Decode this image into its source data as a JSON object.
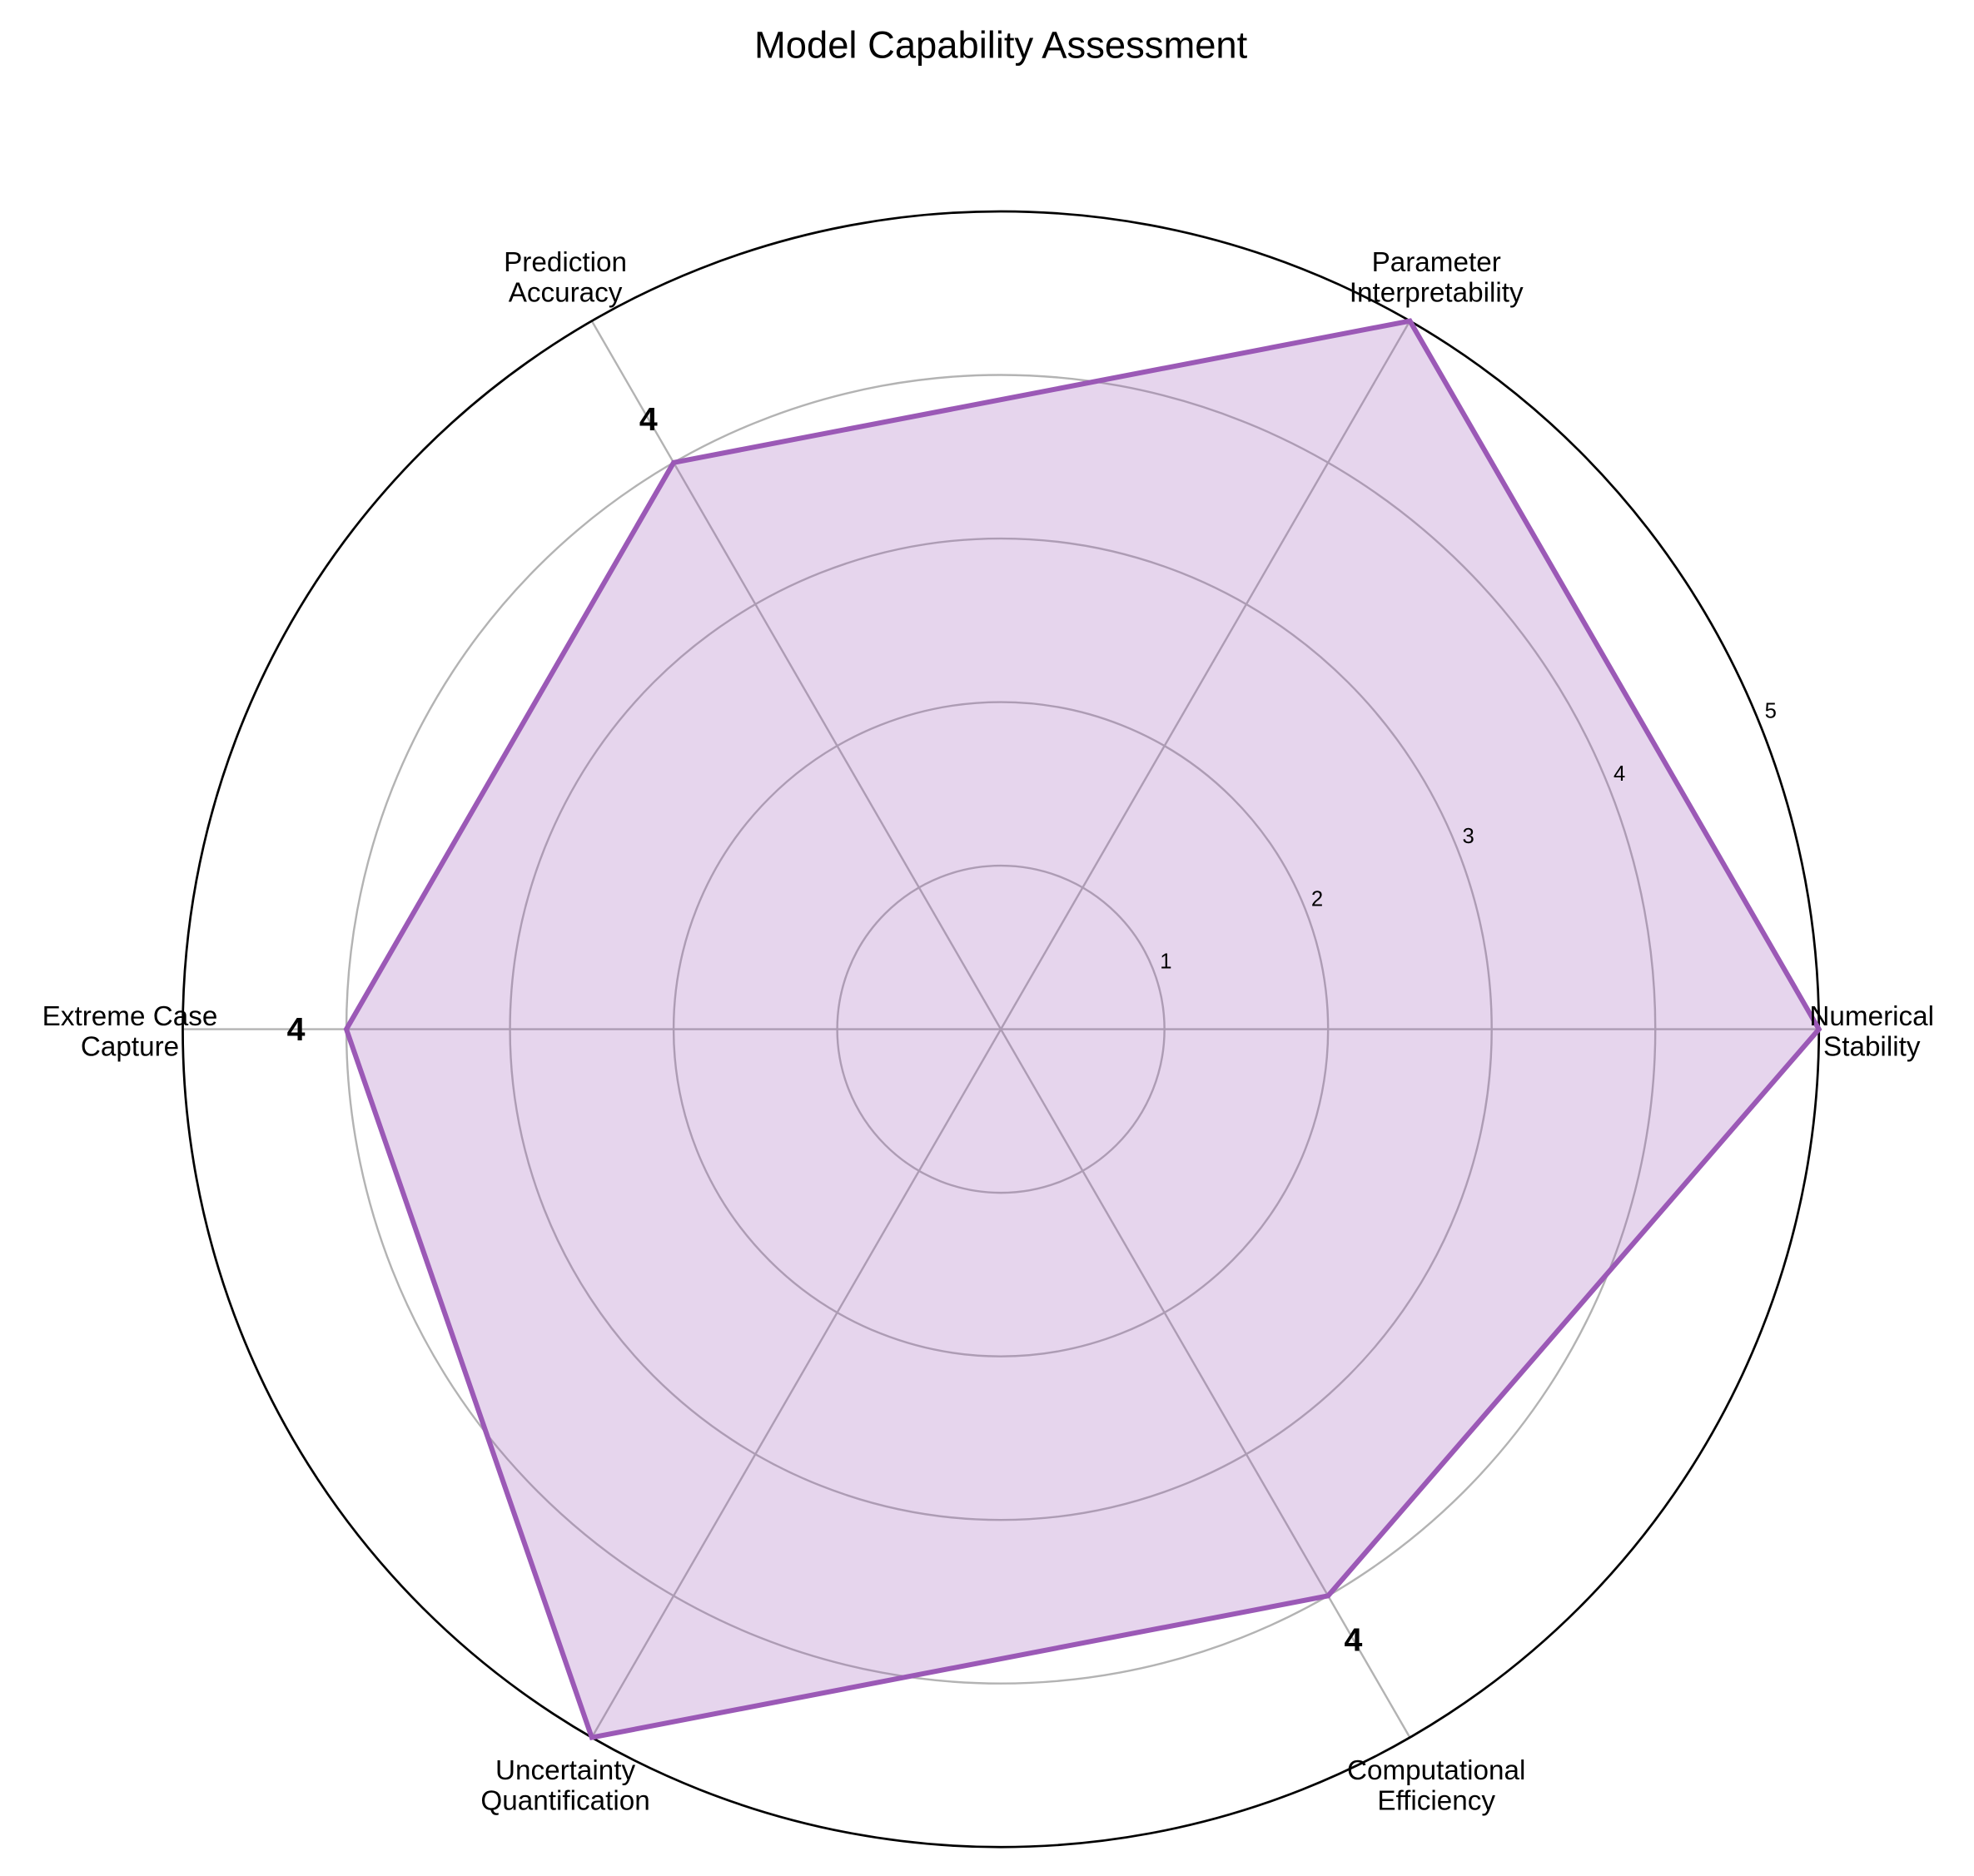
{
  "chart_data": {
    "type": "radar",
    "title": "Model Capability Assessment",
    "categories": [
      [
        "Numerical",
        "Stability"
      ],
      [
        "Parameter",
        "Interpretability"
      ],
      [
        "Prediction",
        "Accuracy"
      ],
      [
        "Extreme Case",
        "Capture"
      ],
      [
        "Uncertainty",
        "Quantification"
      ],
      [
        "Computational",
        "Efficiency"
      ]
    ],
    "values": [
      5,
      5,
      4,
      4,
      5,
      4
    ],
    "annotations": [
      "",
      "",
      "4",
      "4",
      "",
      "4"
    ],
    "radial_ticks": [
      "1",
      "2",
      "3",
      "4",
      "5"
    ],
    "rlim": [
      0,
      5
    ],
    "grid": true,
    "colors": {
      "series": "#9b59b6",
      "grid": "#b3b3b3",
      "outer": "#000000"
    }
  }
}
